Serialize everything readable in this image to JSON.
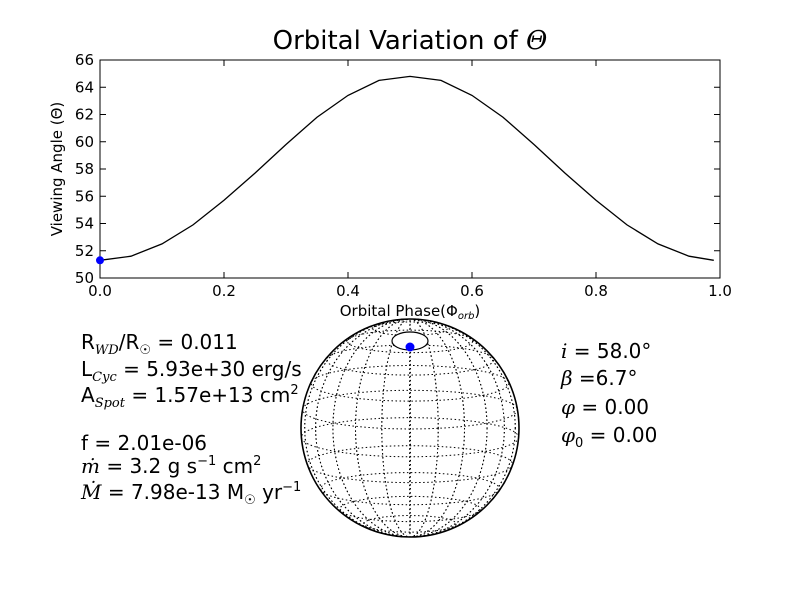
{
  "chart_data": {
    "type": "line",
    "title": "Orbital Variation of Θ",
    "title_prefix": "Orbital Variation of",
    "title_symbol": "Θ",
    "xlabel": "Orbital Phase(Φ",
    "xlabel_sub": "orb",
    "xlabel_close": ")",
    "ylabel": "Viewing Angle (Θ)",
    "xlim": [
      0.0,
      1.0
    ],
    "ylim": [
      50,
      66
    ],
    "xticks": [
      0.0,
      0.2,
      0.4,
      0.6,
      0.8,
      1.0
    ],
    "xtick_labels": [
      "0.0",
      "0.2",
      "0.4",
      "0.6",
      "0.8",
      "1.0"
    ],
    "yticks": [
      50,
      52,
      54,
      56,
      58,
      60,
      62,
      64,
      66
    ],
    "ytick_labels": [
      "50",
      "52",
      "54",
      "56",
      "58",
      "60",
      "62",
      "64",
      "66"
    ],
    "series": [
      {
        "name": "Theta",
        "color": "#000000",
        "x": [
          0.0,
          0.05,
          0.1,
          0.15,
          0.2,
          0.25,
          0.3,
          0.35,
          0.4,
          0.45,
          0.5,
          0.55,
          0.6,
          0.65,
          0.7,
          0.75,
          0.8,
          0.85,
          0.9,
          0.95,
          0.99
        ],
        "y": [
          51.3,
          51.6,
          52.5,
          53.9,
          55.7,
          57.7,
          59.8,
          61.8,
          63.4,
          64.5,
          64.8,
          64.5,
          63.4,
          61.8,
          59.8,
          57.7,
          55.7,
          53.9,
          52.5,
          51.6,
          51.3
        ]
      }
    ],
    "marker": {
      "x": 0.0,
      "y": 51.3,
      "color": "#0000ff"
    }
  },
  "params_left": {
    "r_label": "R",
    "r_sub": "WD",
    "r_slash": "/R",
    "r_sun": "☉",
    "r_value": " = 0.011",
    "l_label": "L",
    "l_sub": "Cyc",
    "l_value": " = 5.93e+30 erg/s",
    "a_label": "A",
    "a_sub": "Spot",
    "a_value": " = 1.57e+13 cm",
    "a_sup": "2",
    "f_text": "f = 2.01e-06",
    "mdot_sym": "ṁ",
    "mdot_value": " = 3.2 g s",
    "mdot_sup1": "−1",
    "mdot_unit": "  cm",
    "mdot_sup2": "2",
    "Mdot_sym": "Ṁ",
    "Mdot_value": " = 7.98e-13 M",
    "Mdot_sun": "☉",
    "Mdot_unit": " yr",
    "Mdot_sup": "−1"
  },
  "params_right": {
    "i_sym": "i",
    "i_value": " = 58.0°",
    "beta_sym": "β",
    "beta_value": " =6.7°",
    "phi_sym": "φ",
    "phi_value": " = 0.00",
    "phi0_sym": "φ",
    "phi0_sub": "0",
    "phi0_value": " = 0.00"
  },
  "sphere": {
    "spot_color": "#0000ff"
  }
}
